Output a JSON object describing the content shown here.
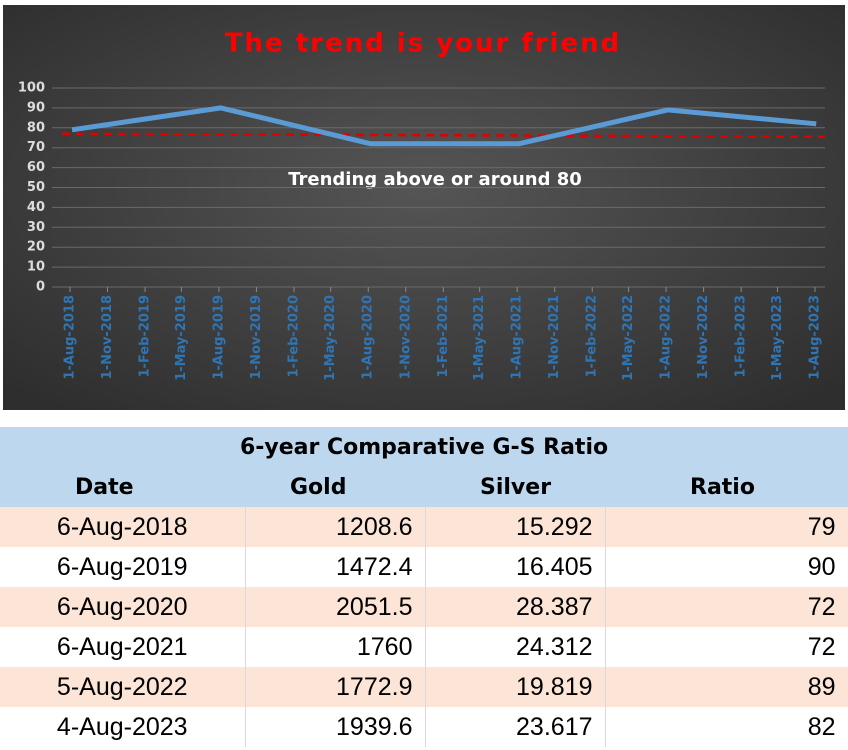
{
  "chart_data": {
    "type": "line",
    "title": "The trend is your friend",
    "annotation": "Trending above or around 80",
    "x": [
      "6-Aug-2018",
      "6-Aug-2019",
      "6-Aug-2020",
      "6-Aug-2021",
      "5-Aug-2022",
      "4-Aug-2023"
    ],
    "series": [
      {
        "name": "Ratio",
        "color": "#5b9bd5",
        "values": [
          79,
          90,
          72,
          72,
          89,
          82
        ]
      }
    ],
    "trendline": {
      "start": 77,
      "end": 75.5,
      "color": "#e00000"
    },
    "xlim": [
      "1-Aug-2018",
      "1-Aug-2023"
    ],
    "xticks": [
      "1-Aug-2018",
      "1-Nov-2018",
      "1-Feb-2019",
      "1-May-2019",
      "1-Aug-2019",
      "1-Nov-2019",
      "1-Feb-2020",
      "1-May-2020",
      "1-Aug-2020",
      "1-Nov-2020",
      "1-Feb-2021",
      "1-May-2021",
      "1-Aug-2021",
      "1-Nov-2021",
      "1-Feb-2022",
      "1-May-2022",
      "1-Aug-2022",
      "1-Nov-2022",
      "1-Feb-2023",
      "1-May-2023",
      "1-Aug-2023"
    ],
    "ylim": [
      0,
      100
    ],
    "yticks": [
      0,
      10,
      20,
      30,
      40,
      50,
      60,
      70,
      80,
      90,
      100
    ],
    "grid": true
  },
  "table": {
    "title": "6-year Comparative G-S Ratio",
    "columns": [
      "Date",
      "Gold",
      "Silver",
      "Ratio"
    ],
    "rows": [
      [
        "6-Aug-2018",
        "1208.6",
        "15.292",
        "79"
      ],
      [
        "6-Aug-2019",
        "1472.4",
        "16.405",
        "90"
      ],
      [
        "6-Aug-2020",
        "2051.5",
        "28.387",
        "72"
      ],
      [
        "6-Aug-2021",
        "1760",
        "24.312",
        "72"
      ],
      [
        "5-Aug-2022",
        "1772.9",
        "19.819",
        "89"
      ],
      [
        "4-Aug-2023",
        "1939.6",
        "23.617",
        "82"
      ]
    ]
  }
}
